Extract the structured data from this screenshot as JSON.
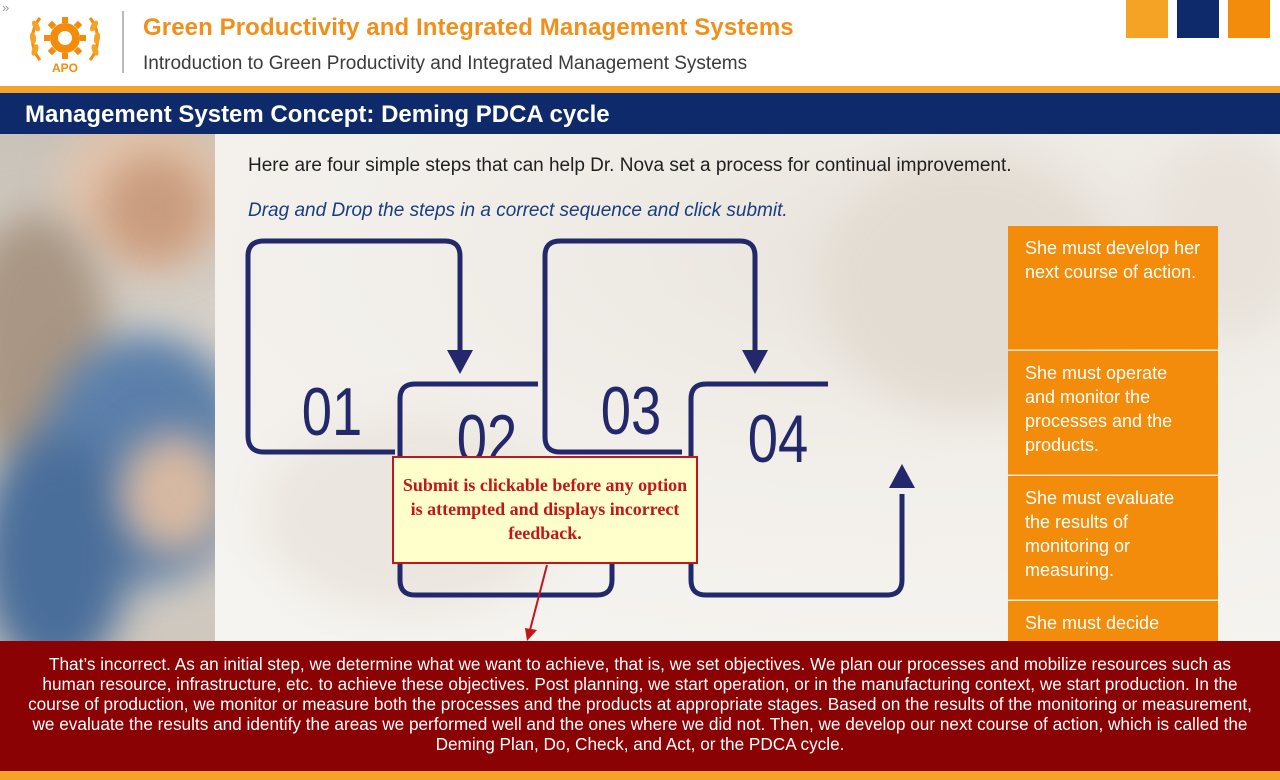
{
  "header": {
    "toggle_glyph": "»",
    "logo_text": "APO",
    "course_title": "Green Productivity and Integrated Management Systems",
    "course_subtitle": "Introduction to Green Productivity and Integrated Management Systems"
  },
  "slide": {
    "title": "Management System Concept: Deming PDCA cycle",
    "instruction": "Here are four simple steps that can help Dr. Nova set a process for continual improvement.",
    "drag_instruction": "Drag and Drop the steps in a correct sequence and click submit."
  },
  "diagram": {
    "steps": [
      "01",
      "02",
      "03",
      "04"
    ]
  },
  "options": [
    "She must develop her next course of action.",
    "She must operate and monitor the processes and the products.",
    "She must evaluate the results of monitoring or measuring.",
    "She must decide"
  ],
  "callout": {
    "text": "Submit is clickable before any option is attempted and displays incorrect feedback."
  },
  "feedback": {
    "text": "That’s incorrect. As an initial step, we determine what we want to achieve, that is, we set objectives. We plan our processes and mobilize resources such as human resource, infrastructure, etc. to achieve these objectives. Post planning, we start operation, or in the manufacturing context, we start production. In the course of production, we monitor or measure both the processes and the products at appropriate stages. Based on the results of the monitoring or measurement, we evaluate the results and identify the areas we performed well and the ones where we did not. Then, we develop our next course of action, which is called the Deming Plan, Do, Check, and Act, or the PDCA cycle."
  },
  "colors": {
    "orange": "#f28c0a",
    "light_orange": "#f5a325",
    "navy": "#0e2a6a",
    "feedback_red": "#8b0204",
    "callout_red": "#c0161c",
    "callout_bg": "#ffffcc"
  }
}
